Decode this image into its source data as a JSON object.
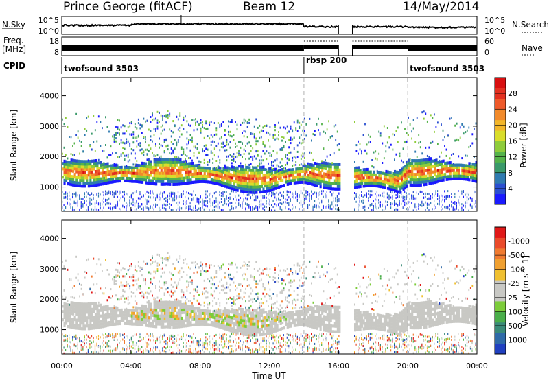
{
  "header": {
    "station": "Prince George (fitACF)",
    "beam": "Beam 12",
    "date": "14/May/2014"
  },
  "strips": {
    "nsky": {
      "label": "N.Sky",
      "tick_top": "10^5",
      "tick_bottom": "10^0",
      "right_label": "N.Search",
      "right_tick_top": "10^5",
      "right_tick_bottom": "10^0"
    },
    "freq": {
      "label_line1": "Freq.",
      "label_line2": "[MHz]",
      "tick_top": "18",
      "tick_bottom": "8",
      "right_label": "Nave",
      "right_tick_top": "60",
      "right_tick_bottom": "0"
    },
    "cpid": {
      "label": "CPID",
      "segments": [
        {
          "name": "twofsound 3503",
          "start_hour": 0,
          "end_hour": 14
        },
        {
          "name": "rbsp 200",
          "start_hour": 14,
          "end_hour": 20
        },
        {
          "name": "twofsound 3503",
          "start_hour": 20,
          "end_hour": 24
        }
      ]
    }
  },
  "colorbars": {
    "power": {
      "label": "Power [dB]",
      "ticks": [
        "4",
        "8",
        "12",
        "16",
        "20",
        "24",
        "28"
      ],
      "colors": [
        "#1a1aff",
        "#2a4fd0",
        "#2f7ab0",
        "#3a9a6a",
        "#55b34a",
        "#8fcc3a",
        "#d9dd2a",
        "#f2b62a",
        "#f28a2a",
        "#ef5a2a",
        "#e33020",
        "#d80f10"
      ]
    },
    "velocity": {
      "label": "Velocity [m s^-1]",
      "ticks": [
        "1000",
        "500",
        "100",
        "25",
        "-25",
        "-100",
        "-500",
        "-1000"
      ],
      "colors": [
        "#2040c0",
        "#2f6aa8",
        "#3a8a78",
        "#4aae4a",
        "#7ccc3a",
        "#c8c8c4",
        "#c8c8c4",
        "#f0c030",
        "#f0a030",
        "#f07a30",
        "#ea4a2a",
        "#e01818"
      ]
    }
  },
  "chart_data": [
    {
      "type": "heatmap",
      "quantity": "Power",
      "ylabel": "Slant Range [km]",
      "yticks": [
        1000,
        2000,
        3000,
        4000
      ],
      "ylim": [
        200,
        4600
      ],
      "xlim": [
        0,
        24
      ],
      "no_data_interval_hours": [
        16.0,
        16.8
      ],
      "dashed_markers_hours": [
        14,
        20
      ],
      "main_band_center_km": [
        [
          0,
          1450
        ],
        [
          4,
          1400
        ],
        [
          6,
          1500
        ],
        [
          8,
          1400
        ],
        [
          10,
          1250
        ],
        [
          12,
          1200
        ],
        [
          14,
          1400
        ],
        [
          16.8,
          1300
        ],
        [
          18,
          1250
        ],
        [
          19.5,
          1150
        ],
        [
          20,
          1450
        ],
        [
          22,
          1500
        ],
        [
          24,
          1450
        ]
      ],
      "scatter_range_km": [
        200,
        3500
      ]
    },
    {
      "type": "heatmap",
      "quantity": "Velocity",
      "ylabel": "Slant Range [km]",
      "yticks": [
        1000,
        2000,
        3000,
        4000
      ],
      "ylim": [
        200,
        4600
      ],
      "xlim": [
        0,
        24
      ],
      "xticks": [
        "00:00",
        "04:00",
        "08:00",
        "12:00",
        "16:00",
        "20:00",
        "00:00"
      ],
      "xlabel": "Time UT",
      "no_data_interval_hours": [
        16.0,
        16.8
      ],
      "dashed_markers_hours": [
        14,
        20
      ]
    }
  ]
}
